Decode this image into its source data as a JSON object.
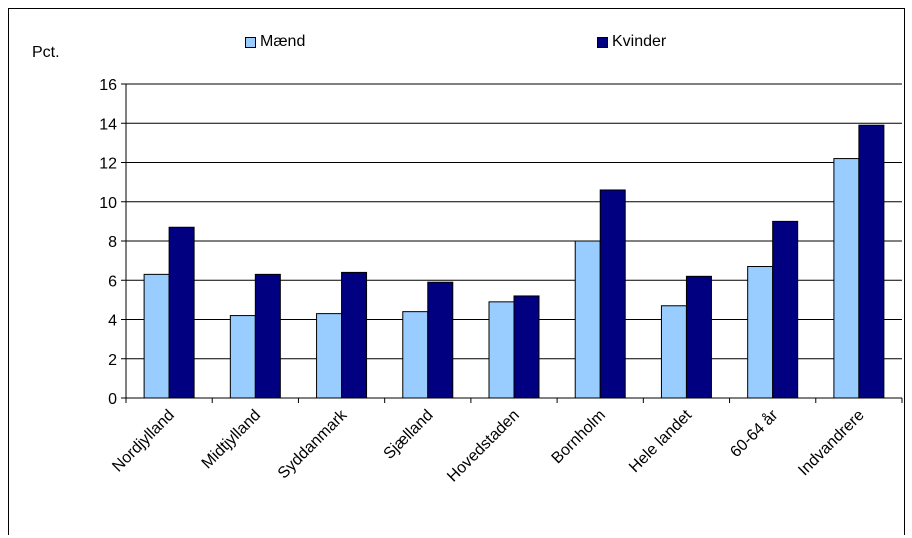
{
  "chart_data": {
    "type": "bar",
    "categories": [
      "Nordjylland",
      "Midtjylland",
      "Syddanmark",
      "Sjælland",
      "Hovedstaden",
      "Bornholm",
      "Hele landet",
      "60-64 år",
      "Indvandrere"
    ],
    "series": [
      {
        "name": "Mænd",
        "values": [
          6.3,
          4.2,
          4.3,
          4.4,
          4.9,
          8.0,
          4.7,
          6.7,
          12.2
        ]
      },
      {
        "name": "Kvinder",
        "values": [
          8.7,
          6.3,
          6.4,
          5.9,
          5.2,
          10.6,
          6.2,
          9.0,
          13.9
        ]
      }
    ],
    "ylabel": "Pct.",
    "ylim": [
      0,
      16
    ],
    "yticks": [
      0,
      2,
      4,
      6,
      8,
      10,
      12,
      14,
      16
    ],
    "grid": true,
    "legend_position": "top",
    "colors": {
      "Mænd": "#99ccff",
      "Kvinder": "#000080"
    }
  }
}
